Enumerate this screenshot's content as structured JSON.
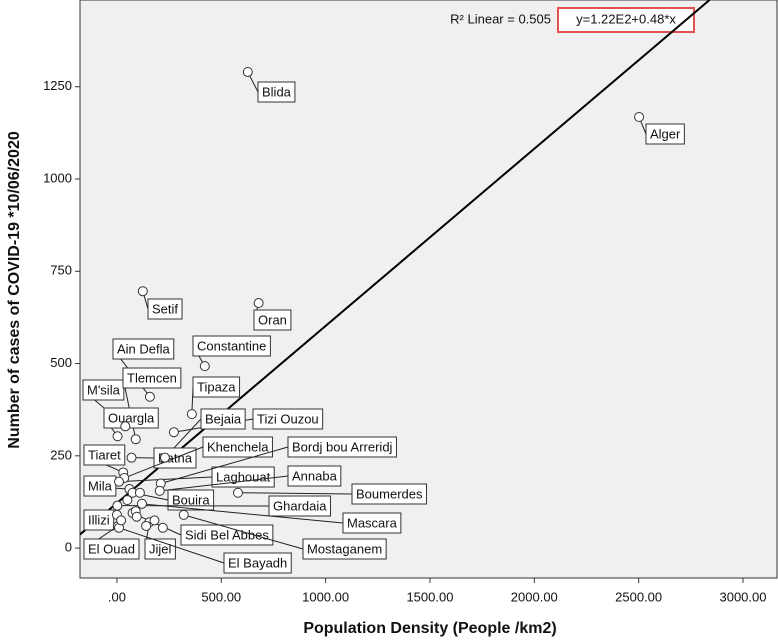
{
  "chart_data": {
    "type": "scatter",
    "x_label": "Population Density (People /km2)",
    "y_label": "Number  of cases of COVID-19 *10/06/2020",
    "r2_text": "R² Linear = 0.505",
    "equation": "y=1.22E2+0.48*x",
    "fit": {
      "intercept": 122,
      "slope": 0.48
    },
    "xlim": [
      -177,
      3163
    ],
    "ylim": [
      -81,
      1485
    ],
    "xticks": [
      {
        "value": 0,
        "label": ".00"
      },
      {
        "value": 500,
        "label": "500.00"
      },
      {
        "value": 1000,
        "label": "1000.00"
      },
      {
        "value": 1500,
        "label": "1500.00"
      },
      {
        "value": 2000,
        "label": "2000.00"
      },
      {
        "value": 2500,
        "label": "2500.00"
      },
      {
        "value": 3000,
        "label": "3000.00"
      }
    ],
    "yticks": [
      0,
      250,
      500,
      750,
      1000,
      1250
    ],
    "point_color": "#ffffff",
    "line_color": "#000000",
    "point_labels": [
      "Blida",
      "Alger",
      "Oran",
      "Setif",
      "Constantine",
      "Ain Defla",
      "Tipaza",
      "Tizi Ouzou",
      "M'sila",
      "Tlemcen",
      "Ouargla",
      "Bejaia",
      "Batna",
      "Tiaret",
      "Khenchela",
      "Laghouat",
      "Bordj bou Arreridj",
      "Annaba",
      "Mila",
      "Bouira",
      "Boumerdes",
      "Ghardaia",
      "Mascara",
      "Illizi",
      "Sidi Bel Abbes",
      "Mostaganem",
      "El Ouad",
      "Jijel",
      "El Bayadh",
      null,
      null,
      null,
      null,
      null,
      null,
      null,
      null
    ],
    "x": [
      627,
      2502,
      679,
      124,
      421,
      158,
      359,
      273,
      40,
      90,
      3,
      230,
      70,
      30,
      35,
      10,
      210,
      205,
      60,
      75,
      580,
      2,
      120,
      0,
      75,
      320,
      5,
      155,
      10,
      110,
      50,
      90,
      180,
      140,
      20,
      95,
      220
    ],
    "values": [
      1290,
      1168,
      664,
      696,
      493,
      410,
      363,
      314,
      330,
      295,
      303,
      245,
      245,
      205,
      190,
      180,
      175,
      155,
      160,
      150,
      150,
      115,
      120,
      90,
      95,
      90,
      60,
      70,
      55,
      150,
      130,
      100,
      75,
      60,
      75,
      85,
      55
    ]
  }
}
